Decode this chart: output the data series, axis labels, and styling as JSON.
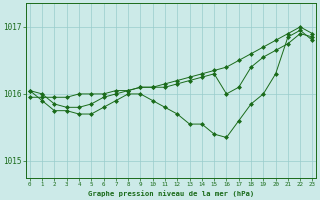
{
  "title": "Graphe pression niveau de la mer (hPa)",
  "bg_color": "#cceae8",
  "grid_color": "#99cccc",
  "line_color": "#1a6b1a",
  "marker_color": "#1a6b1a",
  "ylim": [
    1014.75,
    1017.35
  ],
  "yticks": [
    1015,
    1016,
    1017
  ],
  "xlim": [
    -0.3,
    23.3
  ],
  "xticks": [
    0,
    1,
    2,
    3,
    4,
    5,
    6,
    7,
    8,
    9,
    10,
    11,
    12,
    13,
    14,
    15,
    16,
    17,
    18,
    19,
    20,
    21,
    22,
    23
  ],
  "hours": [
    0,
    1,
    2,
    3,
    4,
    5,
    6,
    7,
    8,
    9,
    10,
    11,
    12,
    13,
    14,
    15,
    16,
    17,
    18,
    19,
    20,
    21,
    22,
    23
  ],
  "pressure_main": [
    1016.05,
    1015.9,
    1015.75,
    1015.75,
    1015.7,
    1015.7,
    1015.8,
    1015.9,
    1016.0,
    1016.0,
    1015.9,
    1015.8,
    1015.7,
    1015.55,
    1015.55,
    1015.4,
    1015.35,
    1015.6,
    1015.85,
    1016.0,
    1016.3,
    1016.85,
    1016.95,
    1016.8
  ],
  "pressure_trend1": [
    1015.95,
    1015.95,
    1015.95,
    1015.95,
    1016.0,
    1016.0,
    1016.0,
    1016.05,
    1016.05,
    1016.1,
    1016.1,
    1016.15,
    1016.2,
    1016.25,
    1016.3,
    1016.35,
    1016.4,
    1016.5,
    1016.6,
    1016.7,
    1016.8,
    1016.9,
    1017.0,
    1016.9
  ],
  "pressure_trend2": [
    1016.05,
    1016.0,
    1015.85,
    1015.8,
    1015.8,
    1015.85,
    1015.95,
    1016.0,
    1016.05,
    1016.1,
    1016.1,
    1016.1,
    1016.15,
    1016.2,
    1016.25,
    1016.3,
    1016.0,
    1016.1,
    1016.4,
    1016.55,
    1016.65,
    1016.75,
    1016.9,
    1016.85
  ]
}
